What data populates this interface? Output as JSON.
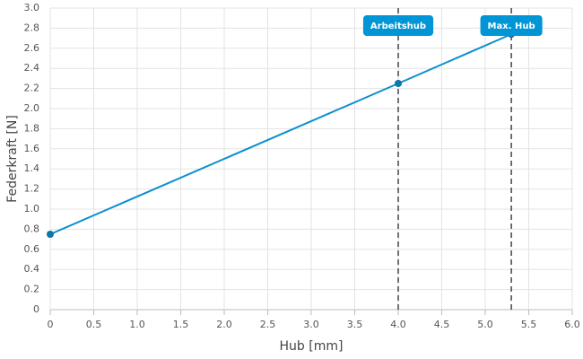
{
  "chart_data": {
    "type": "line",
    "x_label": "Hub [mm]",
    "y_label": "Federkraft [N]",
    "x": [
      0,
      4,
      5.3
    ],
    "series": [
      {
        "name": "Federkraft",
        "color": "#0d8fcf",
        "values": [
          0.75,
          2.25,
          2.74
        ]
      }
    ],
    "xlim": [
      0,
      6
    ],
    "xticks": [
      0,
      0.5,
      {
        "value": 1,
        "label": "1.0"
      },
      1.5,
      {
        "value": 2,
        "label": "2.0"
      },
      2.5,
      {
        "value": 3,
        "label": "3.0"
      },
      3.5,
      {
        "value": 4,
        "label": "4.0"
      },
      4.5,
      {
        "value": 5,
        "label": "5.0"
      },
      5.5,
      {
        "value": 6,
        "label": "6.0"
      }
    ],
    "ylim": [
      0,
      3
    ],
    "yticks": [
      0,
      0.2,
      0.4,
      0.6,
      0.8,
      {
        "value": 1,
        "label": "1.0"
      },
      1.2,
      1.4,
      1.6,
      1.8,
      {
        "value": 2,
        "label": "2.0"
      },
      2.2,
      2.4,
      2.6,
      2.8,
      {
        "value": 3,
        "label": "3.0"
      }
    ],
    "grid": true,
    "annotations": [
      {
        "x": 4,
        "label": "Arbeitshub"
      },
      {
        "x": 5.3,
        "label": "Max. Hub"
      }
    ]
  }
}
